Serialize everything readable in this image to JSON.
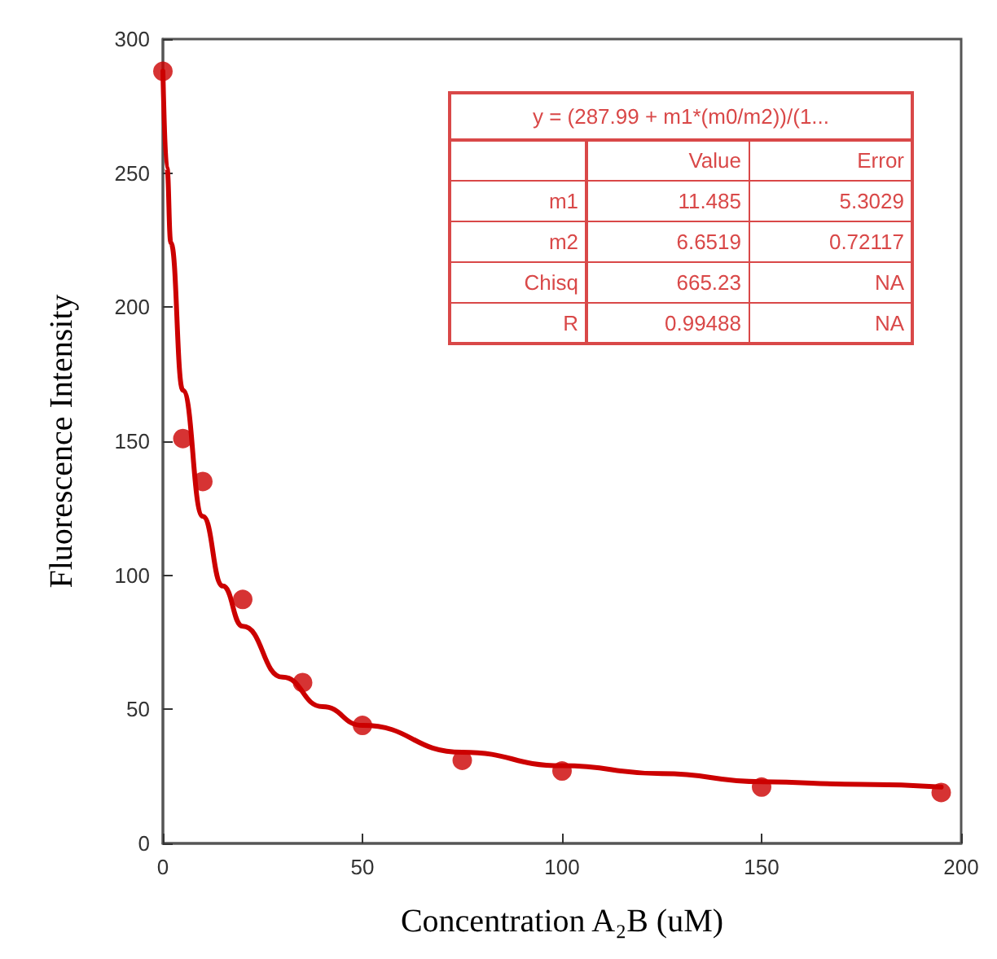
{
  "chart_data": {
    "type": "scatter",
    "xlabel": "Concentration A₂B (uM)",
    "ylabel": "Fluorescence Intensity",
    "x": [
      0,
      5,
      10,
      20,
      35,
      50,
      75,
      100,
      150,
      195
    ],
    "series": [
      {
        "color": "#cc0000",
        "values": [
          288,
          151,
          135,
          91,
          60,
          44,
          31,
          27,
          21,
          19
        ]
      },
      {
        "type": "line",
        "marker": "none",
        "color": "#cc0000",
        "x": [
          0,
          1,
          2,
          5,
          10,
          15,
          20,
          30,
          40,
          50,
          75,
          100,
          125,
          150,
          175,
          195
        ],
        "values": [
          288,
          252,
          224,
          169,
          122,
          96,
          81,
          62,
          51,
          44,
          34,
          29,
          26,
          23,
          22,
          21
        ]
      }
    ],
    "xlim": [
      0,
      200
    ],
    "xticks": [
      0,
      50,
      100,
      150,
      200
    ],
    "ylim": [
      0,
      300
    ],
    "yticks": [
      0,
      50,
      100,
      150,
      200,
      250,
      300
    ],
    "grid": false,
    "marker": "circle",
    "line_style": "solid",
    "annotations": [
      "y = (287.99 + m1*(m0/m2))/(1...",
      "Value",
      "Error",
      "m1",
      "11.485",
      "5.3029",
      "m2",
      "6.6519",
      "0.72117",
      "Chisq",
      "665.23",
      "NA",
      "R",
      "0.99488",
      "NA"
    ]
  }
}
